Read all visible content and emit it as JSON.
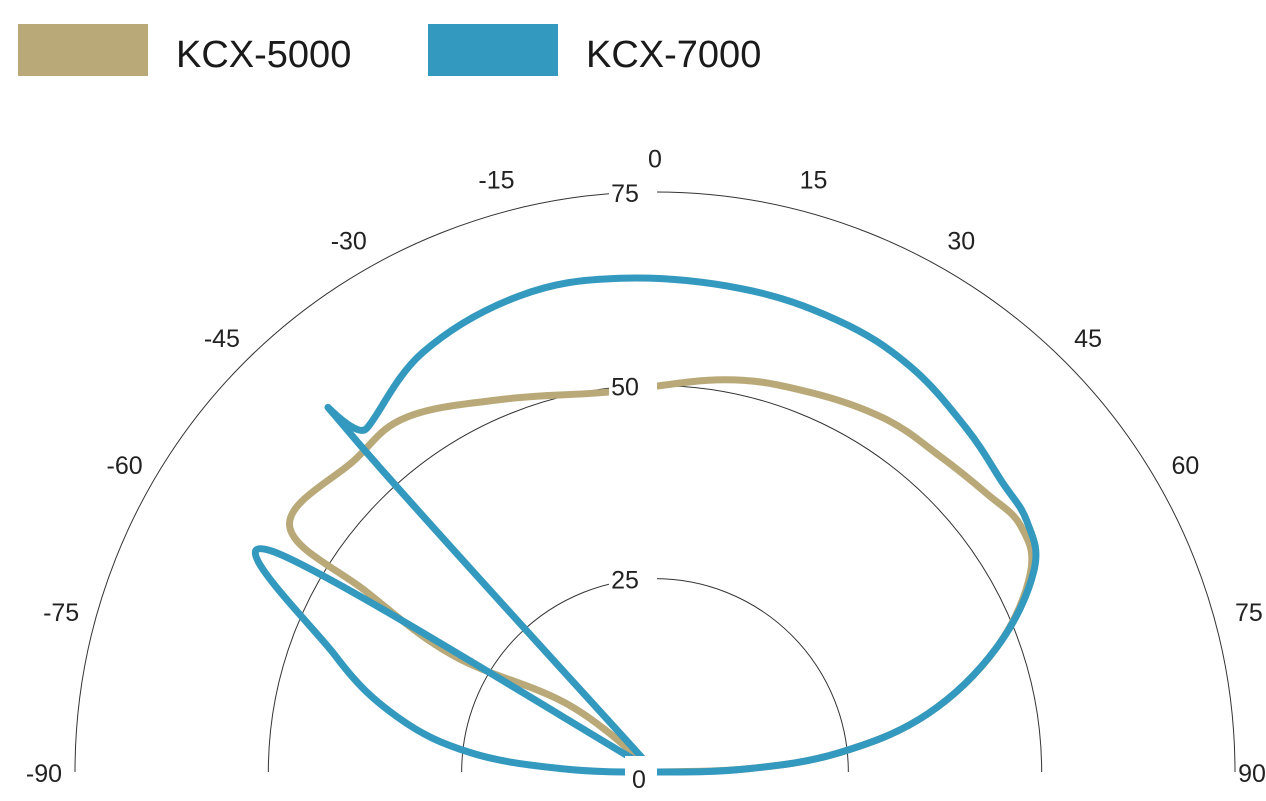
{
  "chart_data": {
    "type": "line",
    "subtype": "polar",
    "angle_range": [
      -90,
      90
    ],
    "angle_ticks": [
      -90,
      -75,
      -60,
      -45,
      -30,
      -15,
      0,
      15,
      30,
      45,
      60,
      75,
      90
    ],
    "radial_range": [
      0,
      75
    ],
    "radial_ticks": [
      0,
      25,
      50,
      75
    ],
    "grid": true,
    "legend": {
      "position": "top-left"
    },
    "series": [
      {
        "name": "KCX-5000",
        "color": "#b9a878",
        "points": [
          {
            "theta": 0,
            "r": 0
          },
          {
            "theta": -52,
            "r": 14
          },
          {
            "theta": -60,
            "r": 30
          },
          {
            "theta": -58,
            "r": 44
          },
          {
            "theta": -56,
            "r": 57
          },
          {
            "theta": -44,
            "r": 56
          },
          {
            "theta": -35,
            "r": 56
          },
          {
            "theta": -22,
            "r": 52
          },
          {
            "theta": -7,
            "r": 49.5
          },
          {
            "theta": 10,
            "r": 51.5
          },
          {
            "theta": 22,
            "r": 53
          },
          {
            "theta": 33,
            "r": 54.5
          },
          {
            "theta": 42,
            "r": 55
          },
          {
            "theta": 50,
            "r": 56
          },
          {
            "theta": 56,
            "r": 57
          },
          {
            "theta": 62,
            "r": 55
          },
          {
            "theta": 70,
            "r": 47
          },
          {
            "theta": 78,
            "r": 36
          },
          {
            "theta": 84,
            "r": 24
          },
          {
            "theta": 88,
            "r": 12
          },
          {
            "theta": 90,
            "r": 0
          }
        ]
      },
      {
        "name": "KCX-7000",
        "color": "#3399bf",
        "points": [
          {
            "theta": 0,
            "r": 0
          },
          {
            "theta": -42,
            "r": 59
          },
          {
            "theta": -40,
            "r": 58
          },
          {
            "theta": -29,
            "r": 62
          },
          {
            "theta": -16,
            "r": 64
          },
          {
            "theta": -4,
            "r": 64
          },
          {
            "theta": 10,
            "r": 63.5
          },
          {
            "theta": 22,
            "r": 63
          },
          {
            "theta": 32,
            "r": 62
          },
          {
            "theta": 42,
            "r": 60
          },
          {
            "theta": 50,
            "r": 58.5
          },
          {
            "theta": 56,
            "r": 58
          },
          {
            "theta": 62,
            "r": 55.5
          },
          {
            "theta": 70,
            "r": 47
          },
          {
            "theta": 78,
            "r": 36
          },
          {
            "theta": 84,
            "r": 24
          },
          {
            "theta": 88,
            "r": 12
          },
          {
            "theta": 90,
            "r": 0
          },
          {
            "theta": -88,
            "r": 12
          },
          {
            "theta": -84,
            "r": 24
          },
          {
            "theta": -78,
            "r": 34
          },
          {
            "theta": -70,
            "r": 44
          },
          {
            "theta": -60,
            "r": 57
          },
          {
            "theta": 0,
            "r": 0
          }
        ]
      }
    ]
  }
}
